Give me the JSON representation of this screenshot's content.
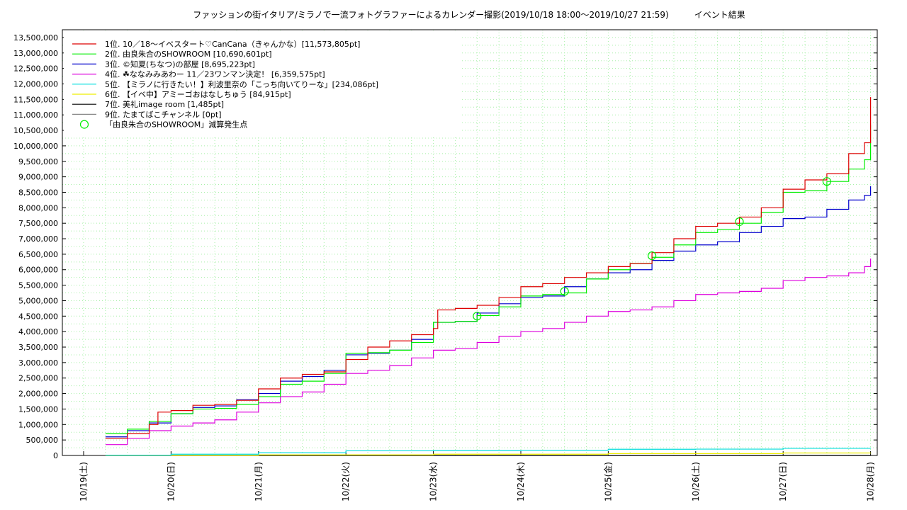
{
  "chart_data": {
    "type": "line",
    "title": "ファッションの街イタリア/ミラノで一流フォトグラファーによるカレンダー撮影(2019/10/18 18:00～2019/10/27 21:59)　　　イベント結果",
    "xlabel": "",
    "ylabel": "",
    "x_ticks": [
      "10/19(土)",
      "10/20(日)",
      "10/21(月)",
      "10/22(火)",
      "10/23(水)",
      "10/24(木)",
      "10/25(金)",
      "10/26(土)",
      "10/27(日)",
      "10/28(月)"
    ],
    "xlim": [
      0,
      9
    ],
    "ylim": [
      0,
      13750000
    ],
    "y_ticks": [
      "0",
      "500,000",
      "1,000,000",
      "1,500,000",
      "2,000,000",
      "2,500,000",
      "3,000,000",
      "3,500,000",
      "4,000,000",
      "4,500,000",
      "5,000,000",
      "5,500,000",
      "6,000,000",
      "6,500,000",
      "7,000,000",
      "7,500,000",
      "8,000,000",
      "8,500,000",
      "9,000,000",
      "9,500,000",
      "10,000,000",
      "10,500,000",
      "11,000,000",
      "11,500,000",
      "12,000,000",
      "12,500,000",
      "13,000,000",
      "13,500,000"
    ],
    "y_tick_values": [
      0,
      500000,
      1000000,
      1500000,
      2000000,
      2500000,
      3000000,
      3500000,
      4000000,
      4500000,
      5000000,
      5500000,
      6000000,
      6500000,
      7000000,
      7500000,
      8000000,
      8500000,
      9000000,
      9500000,
      10000000,
      10500000,
      11000000,
      11500000,
      12000000,
      12500000,
      13000000,
      13500000
    ],
    "grid": true,
    "legend_position": "top-left",
    "series": [
      {
        "name": "1位. 10／18～イベスタート♡CanCana（きゃんかな）[11,573,805pt]",
        "color": "#dd0000",
        "points": [
          [
            0.25,
            550000
          ],
          [
            0.5,
            700000
          ],
          [
            0.75,
            1000000
          ],
          [
            0.85,
            1400000
          ],
          [
            1.0,
            1450000
          ],
          [
            1.25,
            1620000
          ],
          [
            1.5,
            1650000
          ],
          [
            1.75,
            1780000
          ],
          [
            2.0,
            2150000
          ],
          [
            2.25,
            2500000
          ],
          [
            2.5,
            2620000
          ],
          [
            2.75,
            2700000
          ],
          [
            3.0,
            3100000
          ],
          [
            3.25,
            3500000
          ],
          [
            3.5,
            3700000
          ],
          [
            3.75,
            3900000
          ],
          [
            4.0,
            4100000
          ],
          [
            4.05,
            4700000
          ],
          [
            4.25,
            4750000
          ],
          [
            4.5,
            4850000
          ],
          [
            4.75,
            5100000
          ],
          [
            5.0,
            5450000
          ],
          [
            5.25,
            5550000
          ],
          [
            5.5,
            5750000
          ],
          [
            5.75,
            5900000
          ],
          [
            6.0,
            6100000
          ],
          [
            6.25,
            6200000
          ],
          [
            6.5,
            6550000
          ],
          [
            6.75,
            7000000
          ],
          [
            7.0,
            7400000
          ],
          [
            7.25,
            7500000
          ],
          [
            7.5,
            7700000
          ],
          [
            7.75,
            8000000
          ],
          [
            8.0,
            8600000
          ],
          [
            8.25,
            8900000
          ],
          [
            8.5,
            9100000
          ],
          [
            8.75,
            9750000
          ],
          [
            8.93,
            10100000
          ],
          [
            9.0,
            11573805
          ]
        ]
      },
      {
        "name": "2位. 由良朱合のSHOWROOM [10,690,601pt]",
        "color": "#00ee00",
        "points": [
          [
            0.25,
            700000
          ],
          [
            0.5,
            850000
          ],
          [
            0.75,
            1100000
          ],
          [
            1.0,
            1350000
          ],
          [
            1.25,
            1500000
          ],
          [
            1.5,
            1520000
          ],
          [
            1.75,
            1650000
          ],
          [
            2.0,
            1900000
          ],
          [
            2.25,
            2300000
          ],
          [
            2.5,
            2400000
          ],
          [
            2.75,
            2650000
          ],
          [
            3.0,
            3300000
          ],
          [
            3.25,
            3320000
          ],
          [
            3.5,
            3400000
          ],
          [
            3.75,
            3650000
          ],
          [
            4.0,
            4300000
          ],
          [
            4.25,
            4330000
          ],
          [
            4.5,
            4520000
          ],
          [
            4.75,
            4800000
          ],
          [
            5.0,
            5150000
          ],
          [
            5.25,
            5200000
          ],
          [
            5.5,
            5250000
          ],
          [
            5.75,
            5700000
          ],
          [
            6.0,
            6000000
          ],
          [
            6.25,
            6200000
          ],
          [
            6.5,
            6400000
          ],
          [
            6.75,
            6800000
          ],
          [
            7.0,
            7200000
          ],
          [
            7.25,
            7300000
          ],
          [
            7.5,
            7500000
          ],
          [
            7.75,
            7850000
          ],
          [
            8.0,
            8500000
          ],
          [
            8.25,
            8550000
          ],
          [
            8.5,
            8850000
          ],
          [
            8.75,
            9250000
          ],
          [
            8.93,
            9550000
          ],
          [
            9.0,
            10690601
          ]
        ]
      },
      {
        "name": "3位. ©知夏(ちなつ)の部屋 [8,695,223pt]",
        "color": "#0000cc",
        "points": [
          [
            0.25,
            600000
          ],
          [
            0.5,
            800000
          ],
          [
            0.75,
            1050000
          ],
          [
            1.0,
            1350000
          ],
          [
            1.25,
            1550000
          ],
          [
            1.5,
            1600000
          ],
          [
            1.75,
            1800000
          ],
          [
            2.0,
            2000000
          ],
          [
            2.25,
            2400000
          ],
          [
            2.5,
            2550000
          ],
          [
            2.75,
            2750000
          ],
          [
            3.0,
            3250000
          ],
          [
            3.25,
            3300000
          ],
          [
            3.5,
            3400000
          ],
          [
            3.75,
            3750000
          ],
          [
            4.0,
            4300000
          ],
          [
            4.25,
            4330000
          ],
          [
            4.5,
            4600000
          ],
          [
            4.75,
            4900000
          ],
          [
            5.0,
            5100000
          ],
          [
            5.25,
            5150000
          ],
          [
            5.5,
            5450000
          ],
          [
            5.75,
            5700000
          ],
          [
            6.0,
            5900000
          ],
          [
            6.25,
            6000000
          ],
          [
            6.5,
            6300000
          ],
          [
            6.75,
            6600000
          ],
          [
            7.0,
            6800000
          ],
          [
            7.25,
            6900000
          ],
          [
            7.5,
            7200000
          ],
          [
            7.75,
            7400000
          ],
          [
            8.0,
            7650000
          ],
          [
            8.25,
            7700000
          ],
          [
            8.5,
            7950000
          ],
          [
            8.75,
            8250000
          ],
          [
            8.93,
            8400000
          ],
          [
            9.0,
            8695223
          ]
        ]
      },
      {
        "name": "4位. ☘ななみみあわー 11／23ワンマン決定！ [6,359,575pt]",
        "color": "#dd00dd",
        "points": [
          [
            0.25,
            350000
          ],
          [
            0.5,
            550000
          ],
          [
            0.75,
            800000
          ],
          [
            1.0,
            950000
          ],
          [
            1.25,
            1050000
          ],
          [
            1.5,
            1150000
          ],
          [
            1.75,
            1400000
          ],
          [
            2.0,
            1700000
          ],
          [
            2.25,
            1900000
          ],
          [
            2.5,
            2050000
          ],
          [
            2.75,
            2300000
          ],
          [
            3.0,
            2650000
          ],
          [
            3.25,
            2750000
          ],
          [
            3.5,
            2900000
          ],
          [
            3.75,
            3150000
          ],
          [
            4.0,
            3400000
          ],
          [
            4.25,
            3450000
          ],
          [
            4.5,
            3650000
          ],
          [
            4.75,
            3850000
          ],
          [
            5.0,
            4000000
          ],
          [
            5.25,
            4100000
          ],
          [
            5.5,
            4300000
          ],
          [
            5.75,
            4500000
          ],
          [
            6.0,
            4650000
          ],
          [
            6.25,
            4700000
          ],
          [
            6.5,
            4800000
          ],
          [
            6.75,
            5000000
          ],
          [
            7.0,
            5200000
          ],
          [
            7.25,
            5250000
          ],
          [
            7.5,
            5300000
          ],
          [
            7.75,
            5400000
          ],
          [
            8.0,
            5650000
          ],
          [
            8.25,
            5750000
          ],
          [
            8.5,
            5800000
          ],
          [
            8.75,
            5900000
          ],
          [
            8.93,
            6100000
          ],
          [
            9.0,
            6359575
          ]
        ]
      },
      {
        "name": "5位. 【ミラノに行きたい！】利波里奈の「こっち向いてりーな」[234,086pt]",
        "color": "#00dddd",
        "points": [
          [
            0.25,
            10000
          ],
          [
            1.0,
            40000
          ],
          [
            2.0,
            90000
          ],
          [
            3.0,
            150000
          ],
          [
            4.0,
            160000
          ],
          [
            5.0,
            170000
          ],
          [
            6.0,
            200000
          ],
          [
            7.0,
            205000
          ],
          [
            8.0,
            230000
          ],
          [
            9.0,
            234086
          ]
        ]
      },
      {
        "name": "6位. 【イベ中】アミーゴおはなしちゅう [84,915pt]",
        "color": "#eeee00",
        "points": [
          [
            0.25,
            5000
          ],
          [
            2.0,
            20000
          ],
          [
            4.0,
            40000
          ],
          [
            6.0,
            60000
          ],
          [
            8.0,
            80000
          ],
          [
            9.0,
            84915
          ]
        ]
      },
      {
        "name": "7位. 美礼image room [1,485pt]",
        "color": "#000000",
        "points": [
          [
            0.25,
            0
          ],
          [
            9.0,
            1485
          ]
        ]
      },
      {
        "name": "9位. たまてばこチャンネル [0pt]",
        "color": "#888888",
        "points": [
          [
            0.25,
            0
          ],
          [
            9.0,
            0
          ]
        ]
      }
    ],
    "markers": {
      "name": "「由良朱合のSHOWROOM」減算発生点",
      "color": "#00ee00",
      "points": [
        [
          4.5,
          4500000
        ],
        [
          5.5,
          5300000
        ],
        [
          6.5,
          6450000
        ],
        [
          7.5,
          7550000
        ],
        [
          8.5,
          8850000
        ]
      ]
    }
  }
}
